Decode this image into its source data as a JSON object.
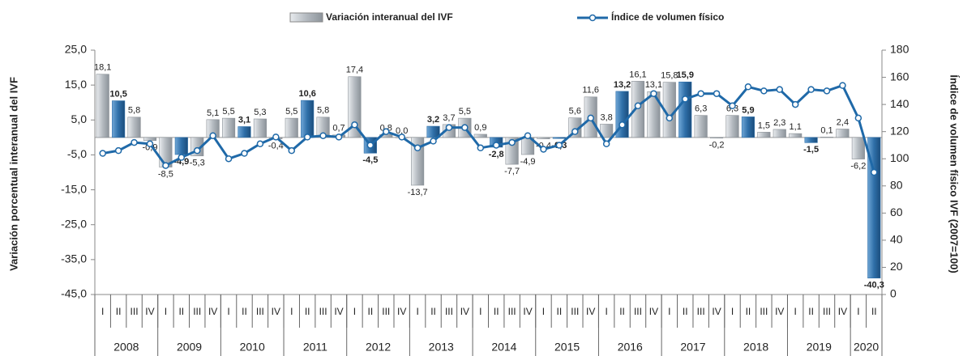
{
  "chart_data": {
    "type": "bar_line",
    "legend": "top",
    "y_label": "Variación porcentual interanual del IVF",
    "y2_label": "Índice de volumen físico IVF (2007=100)",
    "categories": [
      "I",
      "II",
      "III",
      "IV",
      "I",
      "II",
      "III",
      "IV",
      "I",
      "II",
      "III",
      "IV",
      "I",
      "II",
      "III",
      "IV",
      "I",
      "II",
      "III",
      "IV",
      "I",
      "II",
      "III",
      "IV",
      "I",
      "II",
      "III",
      "IV",
      "I",
      "II",
      "III",
      "IV",
      "I",
      "II",
      "III",
      "IV",
      "I",
      "II",
      "III",
      "IV",
      "I",
      "II",
      "III",
      "IV",
      "I",
      "II",
      "III",
      "IV",
      "I",
      "II"
    ],
    "years": [
      "2008",
      "2009",
      "2010",
      "2011",
      "2012",
      "2013",
      "2014",
      "2015",
      "2016",
      "2017",
      "2018",
      "2019",
      "2020"
    ],
    "ylim": [
      -45,
      25
    ],
    "yticks": [
      {
        "value": 25,
        "label": "25,0"
      },
      {
        "value": 15,
        "label": "15,0"
      },
      {
        "value": 5,
        "label": "5,0"
      },
      {
        "value": -5,
        "label": "-5,0"
      },
      {
        "value": -15,
        "label": "-15,0"
      },
      {
        "value": -25,
        "label": "-25,0"
      },
      {
        "value": -35,
        "label": "-35,0"
      },
      {
        "value": -45,
        "label": "-45,0"
      }
    ],
    "y2lim": [
      0,
      180
    ],
    "y2ticks": [
      0,
      20,
      40,
      60,
      80,
      100,
      120,
      140,
      160,
      180
    ],
    "series": [
      {
        "name": "Variación interanual del IVF",
        "type": "bar",
        "color": "#a9b0b7",
        "highlight_color": "#2f6fa8",
        "values": [
          18.1,
          10.5,
          5.8,
          -0.9,
          -8.5,
          -4.9,
          -5.3,
          5.1,
          5.5,
          3.1,
          5.3,
          -0.4,
          5.5,
          10.6,
          5.8,
          0.7,
          17.4,
          -4.5,
          0.8,
          0.0,
          -13.7,
          3.2,
          3.7,
          5.5,
          0.9,
          -2.8,
          -7.7,
          -4.9,
          -0.4,
          -0.3,
          5.6,
          11.6,
          3.8,
          13.2,
          16.1,
          13.1,
          15.8,
          15.9,
          6.3,
          -0.2,
          6.3,
          5.9,
          1.5,
          2.3,
          1.1,
          -1.5,
          0.1,
          2.4,
          -6.2,
          -40.3
        ],
        "value_labels": [
          "18,1",
          "10,5",
          "5,8",
          "-0,9",
          "-8,5",
          "-4,9",
          "-5,3",
          "5,1",
          "5,5",
          "3,1",
          "5,3",
          "-0,4",
          "5,5",
          "10,6",
          "5,8",
          "0,7",
          "17,4",
          "-4,5",
          "0,8",
          "0,0",
          "-13,7",
          "3,2",
          "3,7",
          "5,5",
          "0,9",
          "-2,8",
          "-7,7",
          "-4,9",
          "-0,4",
          "-0,3",
          "5,6",
          "11,6",
          "3,8",
          "13,2",
          "16,1",
          "13,1",
          "15,8",
          "15,9",
          "6,3",
          "-0,2",
          "6,3",
          "5,9",
          "1,5",
          "2,3",
          "1,1",
          "-1,5",
          "0,1",
          "2,4",
          "-6,2",
          "-40,3"
        ]
      },
      {
        "name": "Índice de volumen físico",
        "type": "line",
        "axis": "y2",
        "color": "#1f69a8",
        "values": [
          104,
          106,
          112,
          111,
          95,
          101,
          106,
          117,
          100,
          104,
          111,
          116,
          106,
          116,
          117,
          116,
          125,
          110,
          120,
          116,
          108,
          113,
          123,
          123,
          108,
          110,
          112,
          117,
          107,
          110,
          120,
          130,
          111,
          125,
          139,
          148,
          130,
          144,
          148,
          148,
          139,
          153,
          150,
          151,
          140,
          151,
          150,
          154,
          130,
          90
        ]
      }
    ]
  }
}
